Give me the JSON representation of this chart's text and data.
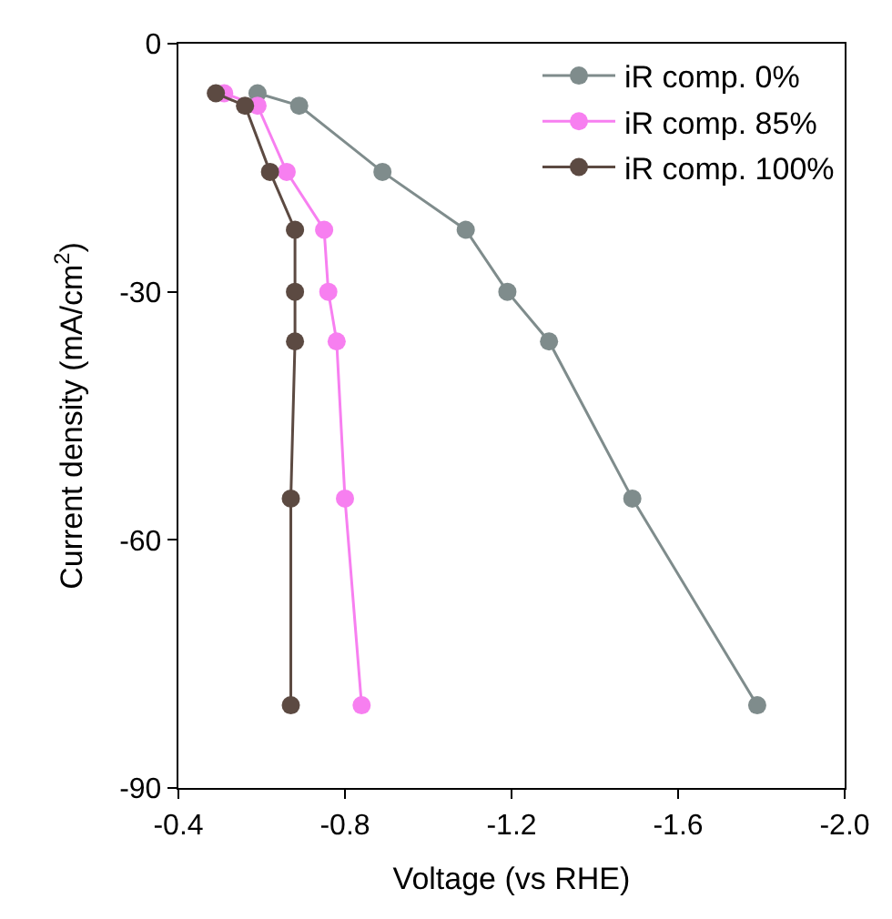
{
  "chart_data": {
    "type": "line",
    "xlabel": "Voltage (vs RHE)",
    "ylabel": "Current density (mA/cm$^{2}$)",
    "xlim": [
      -0.4,
      -2.0
    ],
    "xticks": [
      -0.4,
      -0.8,
      -1.2,
      -1.6,
      {
        "value": -2.0,
        "label": "-2.0"
      }
    ],
    "ylim": [
      -90,
      0
    ],
    "yticks": [
      -90,
      -60,
      -30,
      0
    ],
    "legend": "top right",
    "marker": "circle",
    "line_style": "solid",
    "series": [
      {
        "name": "iR comp. 0%",
        "color": "#7f8c8c",
        "x": [
          -0.59,
          -0.69,
          -0.89,
          -1.09,
          -1.19,
          -1.29,
          -1.49,
          -1.79
        ],
        "values": [
          -6,
          -7.5,
          -15.5,
          -22.5,
          -30,
          -36,
          -55,
          -80
        ]
      },
      {
        "name": "iR comp. 85%",
        "color": "#f77ff0",
        "x": [
          -0.51,
          -0.59,
          -0.66,
          -0.75,
          -0.76,
          -0.78,
          -0.8,
          -0.84
        ],
        "values": [
          -6,
          -7.5,
          -15.5,
          -22.5,
          -30,
          -36,
          -55,
          -80
        ]
      },
      {
        "name": "iR comp. 100%",
        "color": "#5c4a42",
        "x": [
          -0.49,
          -0.56,
          -0.62,
          -0.68,
          -0.68,
          -0.68,
          -0.67,
          -0.67
        ],
        "values": [
          -6,
          -7.5,
          -15.5,
          -22.5,
          -30,
          -36,
          -55,
          -80
        ]
      }
    ]
  }
}
